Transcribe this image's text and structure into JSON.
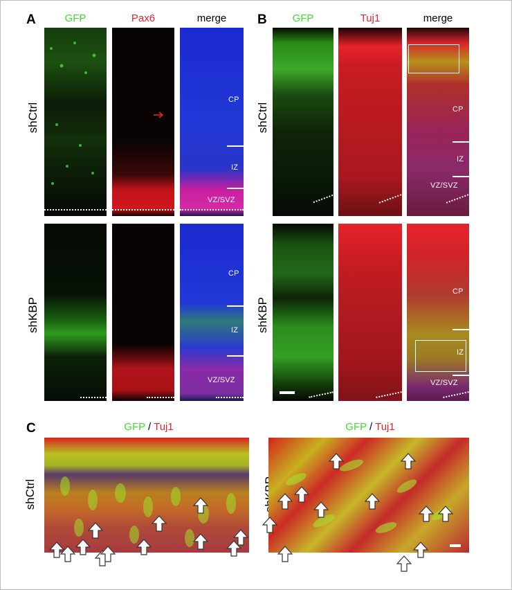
{
  "panels": {
    "A": {
      "label": "A",
      "headers": {
        "gfp": "GFP",
        "marker": "Pax6",
        "merge": "merge"
      },
      "rows": [
        "shCtrl",
        "shKBP"
      ],
      "zones": {
        "cp": "CP",
        "iz": "IZ",
        "vz": "VZ/SVZ"
      }
    },
    "B": {
      "label": "B",
      "headers": {
        "gfp": "GFP",
        "marker": "Tuj1",
        "merge": "merge"
      },
      "rows": [
        "shCtrl",
        "shKBP"
      ],
      "zones": {
        "cp": "CP",
        "iz": "IZ",
        "vz": "VZ/SVZ"
      }
    },
    "C": {
      "label": "C",
      "header_green": "GFP",
      "header_sep": " / ",
      "header_red": "Tuj1",
      "rows": [
        "shCtrl",
        "shKBP"
      ]
    }
  },
  "colors": {
    "gfp": "#3fdc2c",
    "marker": "#e8232a",
    "dapi": "#2a3fd8"
  }
}
